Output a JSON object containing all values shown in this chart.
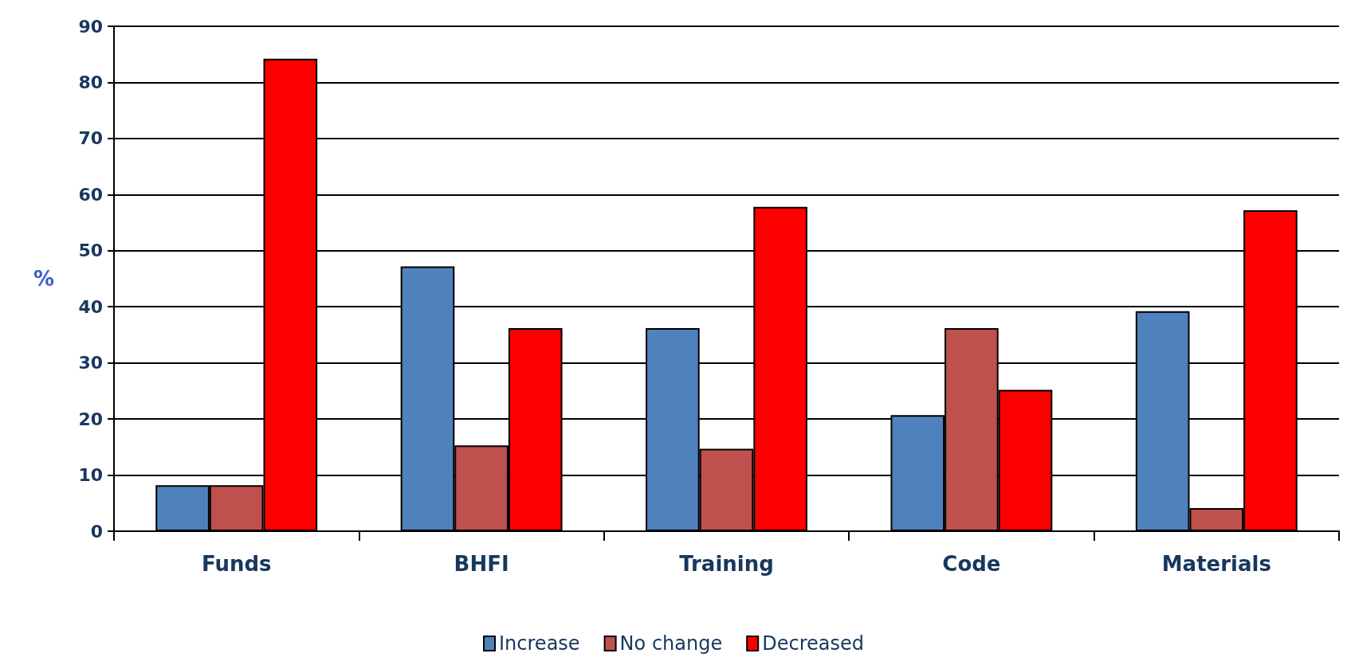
{
  "chart_data": {
    "type": "bar",
    "ylabel": "%",
    "categories": [
      "Funds",
      "BHFI",
      "Training",
      "Code",
      "Materials"
    ],
    "series": [
      {
        "name": "Increase",
        "color": "#4f81bd",
        "values": [
          8.2,
          47.2,
          36.2,
          20.7,
          39.2
        ]
      },
      {
        "name": "No change",
        "color": "#c0504d",
        "values": [
          8.2,
          15.3,
          14.7,
          36.2,
          4.1
        ]
      },
      {
        "name": "Decreased",
        "color": "#ff0000",
        "values": [
          84.2,
          36.2,
          57.8,
          25.2,
          57.2
        ]
      }
    ],
    "ylim": [
      0,
      90
    ],
    "yticks": [
      0,
      10,
      20,
      30,
      40,
      50,
      60,
      70,
      80,
      90
    ],
    "grid": "y",
    "legend": "bottom"
  }
}
